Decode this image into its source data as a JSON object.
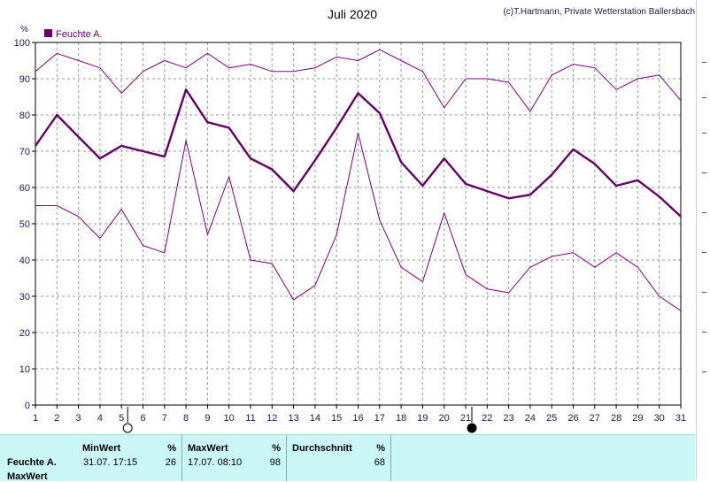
{
  "header": {
    "title": "Juli 2020",
    "copyright": "(c)T.Hartmann, Private Wetterstation Ballersbach"
  },
  "legend": {
    "label": "Feuchte A.",
    "color": "#660066"
  },
  "chart_data": {
    "type": "line",
    "title": "Juli 2020",
    "ylabel": "%",
    "xlabel": "",
    "ylim": [
      0,
      100
    ],
    "xlim": [
      1,
      31
    ],
    "x": [
      1,
      2,
      3,
      4,
      5,
      6,
      7,
      8,
      9,
      10,
      11,
      12,
      13,
      14,
      15,
      16,
      17,
      18,
      19,
      20,
      21,
      22,
      23,
      24,
      25,
      26,
      27,
      28,
      29,
      30,
      31
    ],
    "y_ticks": [
      "0",
      "10",
      "20",
      "30",
      "40",
      "50",
      "60",
      "70",
      "80",
      "90",
      "100"
    ],
    "x_ticks": [
      "1",
      "2",
      "3",
      "4",
      "5",
      "6",
      "7",
      "8",
      "9",
      "10",
      "11",
      "12",
      "13",
      "14",
      "15",
      "16",
      "17",
      "18",
      "19",
      "20",
      "21",
      "22",
      "23",
      "24",
      "25",
      "26",
      "27",
      "28",
      "29",
      "30",
      "31"
    ],
    "grid": true,
    "legend_position": "top-left",
    "moon_phases": [
      {
        "day": 5,
        "phase": "full-moon-icon"
      },
      {
        "day": 21,
        "phase": "new-moon-icon"
      }
    ],
    "series": [
      {
        "name": "Feuchte A.",
        "role": "max",
        "color": "#800080",
        "width": 1,
        "values": [
          92,
          97,
          95,
          93,
          86,
          92,
          95,
          93,
          97,
          93,
          94,
          92,
          92,
          93,
          96,
          95,
          98,
          95,
          92,
          82,
          90,
          90,
          89,
          81,
          91,
          94,
          93,
          87,
          90,
          91,
          84
        ]
      },
      {
        "name": "Feuchte A.",
        "role": "mean",
        "color": "#660066",
        "width": 2.4,
        "values": [
          71.5,
          80,
          74,
          68,
          71.5,
          70,
          68.5,
          87,
          78,
          76.5,
          68,
          65,
          59,
          67.5,
          76.5,
          86,
          80.5,
          67,
          60.5,
          68,
          61,
          59,
          57,
          58,
          63.5,
          70.5,
          66.5,
          60.5,
          62,
          57.5,
          52
        ]
      },
      {
        "name": "Feuchte A.",
        "role": "min",
        "color": "#800080",
        "width": 1,
        "values": [
          55,
          55,
          52,
          46,
          54,
          44,
          42,
          73,
          47,
          63,
          40,
          39,
          29,
          33,
          47,
          75,
          51,
          38,
          34,
          53,
          36,
          32,
          31,
          38,
          41,
          42,
          38,
          42,
          38,
          30,
          26
        ]
      }
    ]
  },
  "stats": {
    "row_labels": [
      "Feuchte A.",
      "MaxWert"
    ],
    "min": {
      "header": "MinWert",
      "unit": "%",
      "datetime": "31.07.  17:15",
      "value": "26"
    },
    "max": {
      "header": "MaxWert",
      "unit": "%",
      "datetime": "17.07.  08:10",
      "value": "98"
    },
    "avg": {
      "header": "Durchschnitt",
      "unit": "%",
      "value": "68"
    }
  }
}
